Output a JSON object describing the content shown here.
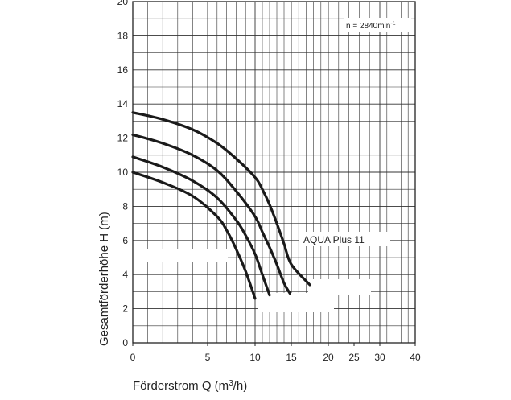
{
  "chart_data": {
    "type": "line",
    "title": "",
    "xlabel": "Förderstrom   Q (m³/h)",
    "ylabel": "Gesamtförderhöhe   H (m)",
    "xlabel_parts": {
      "text": "Förderstrom   Q (m",
      "sup": "3",
      "after": "/h)"
    },
    "ylabel_parts": {
      "text": "Gesamtförderhöhe   H (m)"
    },
    "x_ticks": [
      0,
      5,
      10,
      15,
      20,
      25,
      30,
      40
    ],
    "y_ticks": [
      2,
      4,
      6,
      8,
      10,
      12,
      14,
      16,
      18,
      20
    ],
    "y_extra_tick": 0,
    "ylim": [
      0,
      20
    ],
    "x_scale": "nonlinear (linear 0–15, compressed 15–40)",
    "grid": true,
    "speed_label": {
      "text": "n = 2840min",
      "sup": "-1"
    },
    "model_label": "AQUA  Plus 11",
    "series": [
      {
        "name": "curve-1",
        "x": [
          0,
          2,
          4,
          6,
          8,
          10,
          11,
          12,
          13,
          14,
          15,
          17.5
        ],
        "y": [
          13.5,
          13.1,
          12.5,
          11.7,
          10.8,
          9.7,
          9.0,
          8.1,
          7.0,
          5.8,
          4.6,
          3.4
        ]
      },
      {
        "name": "curve-2",
        "x": [
          0,
          2,
          4,
          6,
          8,
          10,
          11,
          12,
          13,
          14,
          14.8
        ],
        "y": [
          12.2,
          11.7,
          11.0,
          10.1,
          8.9,
          7.4,
          6.5,
          5.6,
          4.6,
          3.5,
          2.9
        ]
      },
      {
        "name": "curve-3",
        "x": [
          0,
          2,
          4,
          6,
          8,
          9,
          10,
          11,
          12
        ],
        "y": [
          10.9,
          10.3,
          9.5,
          8.5,
          7.2,
          6.3,
          5.2,
          4.0,
          2.8
        ]
      },
      {
        "name": "curve-4",
        "x": [
          0,
          2,
          4,
          6,
          7,
          8,
          9,
          10
        ],
        "y": [
          10.0,
          9.4,
          8.6,
          7.4,
          6.6,
          5.5,
          4.2,
          2.6
        ]
      }
    ]
  }
}
